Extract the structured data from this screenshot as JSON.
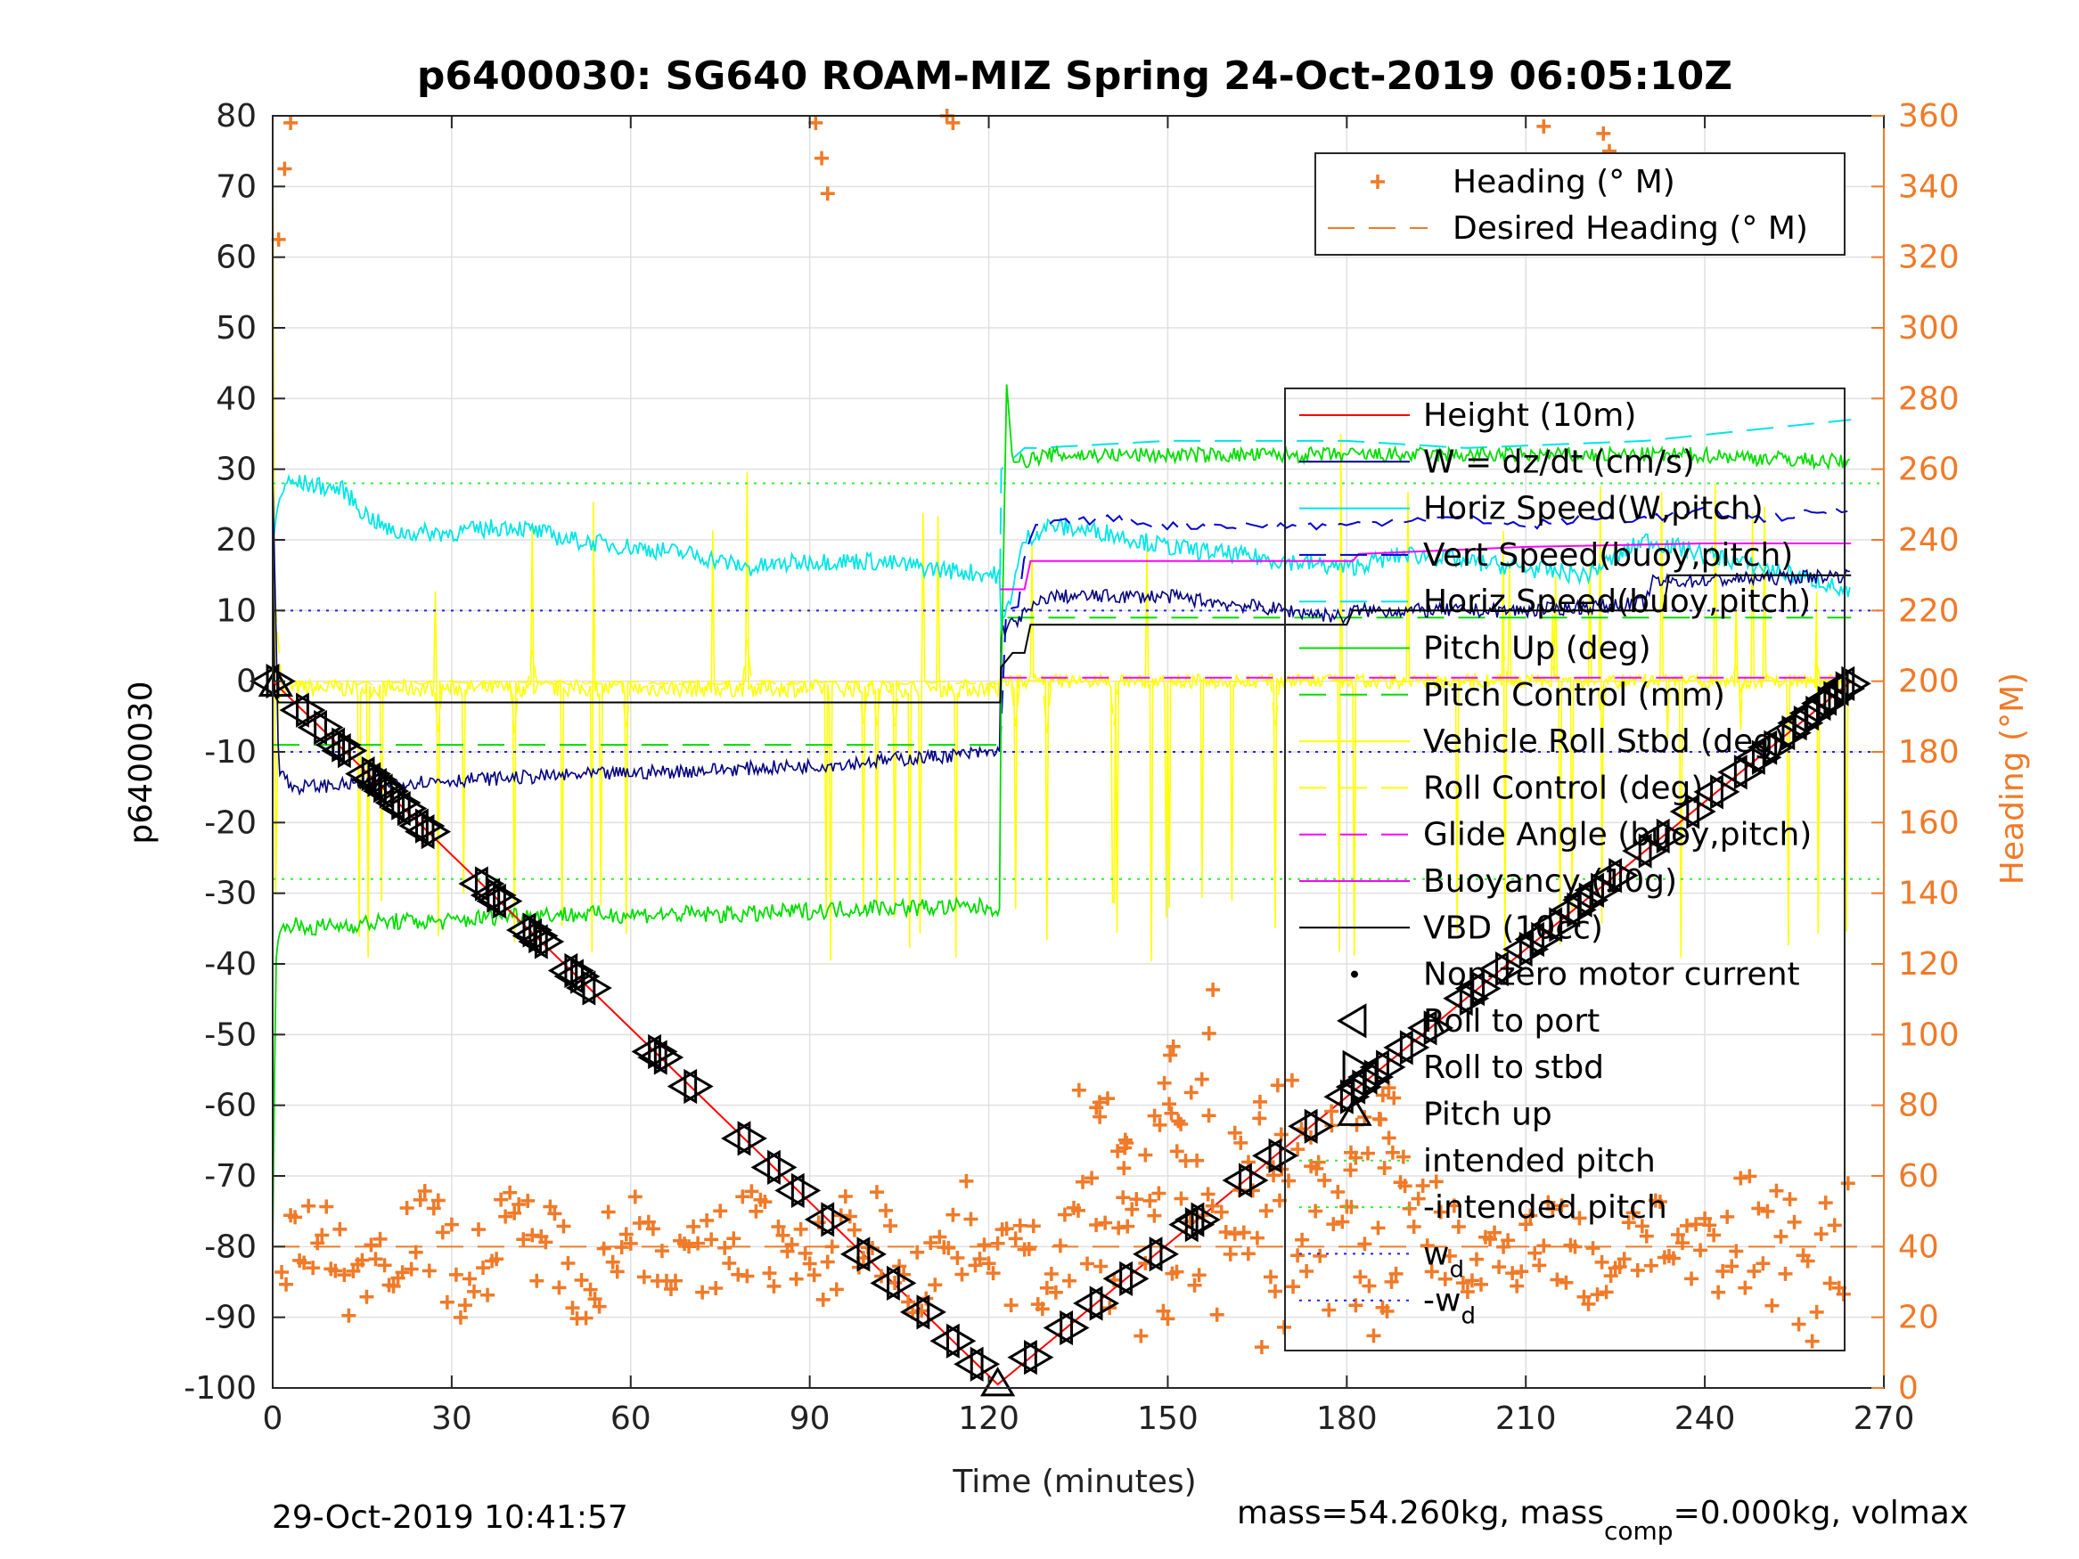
{
  "chart_data": {
    "type": "line",
    "title": "p6400030: SG640 ROAM-MIZ Spring 24-Oct-2019 06:05:10Z",
    "xlabel": "Time (minutes)",
    "ylabel": "p6400030",
    "y2label": "Heading (°M)",
    "xlim": [
      0,
      270
    ],
    "ylim": [
      -100,
      80
    ],
    "y2lim": [
      0,
      360
    ],
    "xticks": [
      "0",
      "30",
      "60",
      "90",
      "120",
      "150",
      "180",
      "210",
      "240",
      "270"
    ],
    "yticks": [
      "80",
      "70",
      "60",
      "50",
      "40",
      "30",
      "20",
      "10",
      "0",
      "-10",
      "-20",
      "-30",
      "-40",
      "-50",
      "-60",
      "-70",
      "-80",
      "-90",
      "-100"
    ],
    "y2ticks": [
      "360",
      "340",
      "320",
      "300",
      "280",
      "260",
      "240",
      "220",
      "200",
      "180",
      "160",
      "140",
      "120",
      "100",
      "80",
      "60",
      "40",
      "20",
      "0"
    ],
    "grid": true,
    "footer_left": "29-Oct-2019 10:41:57",
    "footer_right": "mass=54.260kg, mass",
    "footer_right_sub": "comp",
    "footer_right_tail": "=0.000kg, volmax",
    "colors": {
      "heading": "#f07a28",
      "height": "#ff0000",
      "w": "#000080",
      "horiz": "#00e5e5",
      "vert": "#0000d0",
      "pitch": "#00dd00",
      "roll": "#ffff00",
      "glide": "#ff00ff",
      "vbd": "#000000",
      "intended": "#33ee33",
      "wd": "#2222ee"
    },
    "legend_heading": {
      "placement": "top-right",
      "entries": [
        {
          "label": "Heading (° M)",
          "style": "plus",
          "color": "#f07a28"
        },
        {
          "label": "Desired Heading (° M)",
          "style": "dash",
          "color": "#f07a28"
        }
      ]
    },
    "legend_main": {
      "placement": "right",
      "entries": [
        {
          "label": "Height (10m)",
          "style": "line",
          "color": "#ff0000"
        },
        {
          "label": "W = dz/dt (cm/s)",
          "style": "line",
          "color": "#000080"
        },
        {
          "label": "Horiz Speed(W,pitch)",
          "style": "line",
          "color": "#00e5e5"
        },
        {
          "label": "Vert Speed(buoy,pitch)",
          "style": "dash",
          "color": "#0000d0"
        },
        {
          "label": "Horiz Speed(buoy,pitch)",
          "style": "dash",
          "color": "#00e5e5"
        },
        {
          "label": "Pitch Up (deg)",
          "style": "line",
          "color": "#00dd00"
        },
        {
          "label": "Pitch Control (mm)",
          "style": "dash",
          "color": "#00dd00"
        },
        {
          "label": "Vehicle Roll Stbd (deg)",
          "style": "line",
          "color": "#ffff00"
        },
        {
          "label": "Roll Control (deg)",
          "style": "dash",
          "color": "#ffff00"
        },
        {
          "label": "Glide Angle (buoy,pitch)",
          "style": "dash",
          "color": "#ff00ff"
        },
        {
          "label": "Buoyancy (10g)",
          "style": "line",
          "color": "#ff00ff"
        },
        {
          "label": "VBD (10cc)",
          "style": "line",
          "color": "#000000"
        },
        {
          "label": "Non-zero motor current",
          "style": "dot",
          "color": "#000000"
        },
        {
          "label": "Roll to port",
          "style": "tri-left",
          "color": "#000000"
        },
        {
          "label": "Roll to stbd",
          "style": "tri-right",
          "color": "#000000"
        },
        {
          "label": "Pitch up",
          "style": "tri-up",
          "color": "#000000"
        },
        {
          "label": "intended pitch",
          "style": "dotted",
          "color": "#33ee33"
        },
        {
          "label": "-intended pitch",
          "style": "dotted",
          "color": "#33ee33"
        },
        {
          "label": "w",
          "sub": "d",
          "style": "dotted",
          "color": "#2222ee"
        },
        {
          "label": "-w",
          "sub": "d",
          "style": "dotted",
          "color": "#2222ee"
        }
      ]
    },
    "series": [
      {
        "name": "Height (10m)",
        "x": [
          0,
          121.5,
          264.5
        ],
        "y": [
          0,
          -99.5,
          0
        ]
      },
      {
        "name": "W = dz/dt (cm/s)",
        "x": [
          0,
          0.5,
          1,
          3,
          30,
          60,
          90,
          121.9,
          122.1,
          130,
          150,
          180,
          181,
          210,
          230,
          231,
          264.5
        ],
        "y": [
          30,
          10,
          -12,
          -15,
          -14,
          -13,
          -12,
          -10,
          7,
          12,
          12,
          9,
          10,
          10,
          11,
          14,
          15
        ]
      },
      {
        "name": "Horiz Speed(W,pitch)",
        "x": [
          0,
          1,
          2,
          5,
          12,
          15,
          20,
          30,
          40,
          50,
          60,
          70,
          80,
          90,
          100,
          110,
          121.9,
          122.1,
          126,
          130,
          140,
          150,
          160,
          170,
          180,
          190,
          200,
          210,
          220,
          230,
          240,
          250,
          260,
          264.5
        ],
        "y": [
          20,
          25,
          28,
          28,
          27,
          24,
          21,
          21,
          22,
          20,
          19,
          18,
          16,
          17,
          17,
          16,
          15,
          7,
          20,
          22,
          21,
          19,
          18,
          17,
          16,
          18,
          17,
          16,
          15,
          20,
          18,
          16,
          14,
          12
        ]
      },
      {
        "name": "Vert Speed(buoy,pitch)",
        "x": [
          121.9,
          122.1,
          125,
          126,
          128,
          140,
          150,
          160,
          170,
          180,
          190,
          200,
          210,
          220,
          230,
          240,
          250,
          260,
          264.5
        ],
        "y": [
          -10,
          10,
          10,
          18,
          22,
          23,
          22,
          22,
          22,
          22,
          23,
          23,
          22,
          23,
          23,
          24,
          23,
          24,
          24
        ]
      },
      {
        "name": "Horiz Speed(buoy,pitch)",
        "x": [
          121.9,
          122.1,
          126,
          128,
          150,
          180,
          200,
          230,
          264.5
        ],
        "y": [
          15,
          30,
          33,
          33,
          34,
          34,
          33,
          34,
          37
        ]
      },
      {
        "name": "Pitch Up (deg)",
        "x": [
          0,
          0.5,
          1,
          2,
          5,
          20,
          30,
          40,
          60,
          80,
          100,
          121.9,
          122.1,
          123,
          124,
          125,
          130,
          150,
          180,
          210,
          240,
          264,
          264.5
        ],
        "y": [
          -80,
          -40,
          -36,
          -34,
          -35,
          -34,
          -34,
          -33,
          -33,
          -33,
          -32,
          -32,
          0,
          42,
          31,
          31,
          32,
          32,
          32,
          32,
          32,
          31,
          30
        ]
      },
      {
        "name": "Pitch Control (mm)",
        "x": [
          0,
          121.9,
          122.1,
          264.5
        ],
        "y": [
          -9,
          -9,
          9,
          9
        ]
      },
      {
        "name": "Vehicle Roll Stbd (deg)",
        "x": [
          0,
          0.5,
          1,
          2,
          264.5
        ],
        "y": [
          80,
          -30,
          -2,
          -1,
          -1
        ]
      },
      {
        "name": "Roll Control (deg)",
        "x": [
          0,
          121.9,
          122.1,
          264.5
        ],
        "y": [
          -1,
          -1,
          0,
          0
        ]
      },
      {
        "name": "Glide Angle (buoy,pitch)",
        "x": [
          121.9,
          264.5
        ],
        "y": [
          0.5,
          0.5
        ]
      },
      {
        "name": "Buoyancy (10g)",
        "x": [
          121.9,
          122.1,
          126,
          127,
          150,
          181,
          182,
          210,
          240,
          264.5
        ],
        "y": [
          13,
          13,
          13,
          17,
          17,
          17,
          18,
          19,
          19.5,
          19.5
        ]
      },
      {
        "name": "VBD (10cc)",
        "x": [
          0,
          0.3,
          1,
          120,
          121.9,
          122.1,
          124,
          126,
          127,
          150,
          180,
          181,
          182,
          210,
          233,
          234,
          264.5
        ],
        "y": [
          20,
          -2,
          -3,
          -3,
          -3,
          2,
          4,
          4,
          8,
          8,
          8,
          10,
          10,
          10,
          10,
          15,
          15
        ]
      }
    ],
    "markers": {
      "dives": [
        0,
        5,
        8,
        11,
        12,
        16,
        17,
        18,
        19,
        21,
        22,
        25,
        26,
        35,
        37,
        38,
        43,
        44,
        45,
        50,
        51,
        53,
        64,
        65,
        70,
        79,
        84,
        88,
        93,
        99,
        104,
        109,
        114,
        118
      ],
      "climbs": [
        127,
        133,
        138,
        143,
        148,
        154,
        155,
        163,
        168,
        174,
        180,
        182,
        184,
        186,
        190,
        194,
        200,
        202,
        206,
        210,
        212,
        215,
        218,
        220,
        222,
        225,
        230,
        233,
        238,
        242,
        246,
        249,
        251,
        254,
        256,
        258,
        260,
        261,
        263,
        264
      ]
    },
    "reference_lines": {
      "intended_pitch": 28,
      "neg_intended_pitch": -28,
      "wd": 10,
      "neg_wd": -10
    },
    "heading": {
      "desired_heading_deg": 40,
      "heading_left_deg": 39,
      "heading_right_deg": 40,
      "noise_deg": 14,
      "wrap_outliers": [
        {
          "x": 1,
          "y": 325
        },
        {
          "x": 2,
          "y": 345
        },
        {
          "x": 3,
          "y": 358
        },
        {
          "x": 91,
          "y": 358
        },
        {
          "x": 92,
          "y": 348
        },
        {
          "x": 93,
          "y": 338
        },
        {
          "x": 113,
          "y": 360
        },
        {
          "x": 114,
          "y": 358
        },
        {
          "x": 213,
          "y": 357
        },
        {
          "x": 223,
          "y": 355
        },
        {
          "x": 224,
          "y": 350
        }
      ]
    }
  }
}
